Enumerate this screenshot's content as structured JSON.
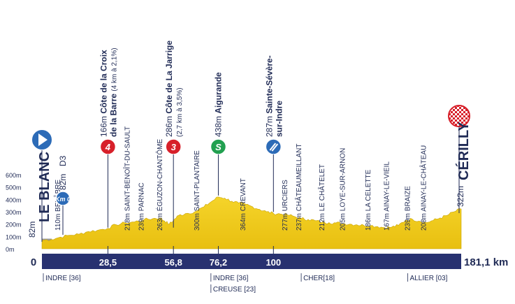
{
  "colors": {
    "terrain_fill": "#f2cf1c",
    "terrain_shade": "#c9a400",
    "distance_bar": "#283170",
    "sky_blue": "#2c6bb7",
    "climb_red": "#d7202a",
    "sprint_green": "#22a050",
    "text": "#1f2a55",
    "grey": "#999999"
  },
  "altitude_axis": {
    "labels": [
      "600m",
      "500m",
      "400m",
      "300m",
      "200m",
      "100m",
      "0m"
    ],
    "values": [
      600,
      500,
      400,
      300,
      200,
      100,
      0
    ]
  },
  "distance_axis": {
    "start_label": "0",
    "end_label": "181,1 km",
    "marks": [
      {
        "km": 28.5,
        "label": "28,5"
      },
      {
        "km": 56.8,
        "label": "56,8"
      },
      {
        "km": 76.2,
        "label": "76,2"
      },
      {
        "km": 100,
        "label": "100"
      }
    ],
    "total_km": 181.1
  },
  "start": {
    "name": "LE BLANC",
    "alt": "82m",
    "icon": "play-arrow-icon"
  },
  "finish": {
    "name": "CÉRILLY",
    "alt": "322m",
    "icon": "checkered-flag-icon"
  },
  "km0": {
    "label": "Km 0",
    "alt": "82m",
    "road": "D3"
  },
  "climbs": [
    {
      "badge": "4",
      "alt": "166m",
      "line1": "Côte de la Croix",
      "line2": "de la Barre",
      "detail": "(4 km à 2,1%)",
      "km": 28.5
    },
    {
      "badge": "3",
      "alt": "286m",
      "line1": "Côte de La Jarrige",
      "line2": "",
      "detail": "(2,7 km à 3,5%)",
      "km": 56.8
    }
  ],
  "sprint": {
    "badge": "S",
    "alt": "438m",
    "name": "Aigurande",
    "km": 76.2
  },
  "feed": {
    "alt": "287m",
    "line1": "Sainte-Sévère-",
    "line2": "sur-Indre",
    "icon": "feed-zone-icon",
    "km": 100
  },
  "waypoints": [
    {
      "text": "110m BELÂBRE",
      "km": 7
    },
    {
      "text": "218m SAINT-BENOÎT-DU-SAULT",
      "km": 37
    },
    {
      "text": "239m PARNAC",
      "km": 43
    },
    {
      "text": "263m ÉGUZON-CHANTÔME",
      "km": 51
    },
    {
      "text": "300m SAINT-PLANTAIRE",
      "km": 67
    },
    {
      "text": "364m CREVANT",
      "km": 87
    },
    {
      "text": "277m URCIERS",
      "km": 105
    },
    {
      "text": "237m CHÂTEAUMEILLANT",
      "km": 111
    },
    {
      "text": "212m LE CHÂTELET",
      "km": 121
    },
    {
      "text": "205m LOYE-SUR-ARNON",
      "km": 130
    },
    {
      "text": "186m LA CELETTE",
      "km": 141
    },
    {
      "text": "167m AINAY-LE-VIEIL",
      "km": 149
    },
    {
      "text": "239m BRAIZE",
      "km": 158
    },
    {
      "text": "208m AINAY-LE-CHÂTEAU",
      "km": 165
    }
  ],
  "departments": [
    {
      "text": "INDRE [36]",
      "km": 0
    },
    {
      "text": "INDRE [36]",
      "km": 73
    },
    {
      "text": "CREUSE [23]",
      "km": 73,
      "row": 2
    },
    {
      "text": "CHER[18]",
      "km": 112
    },
    {
      "text": "ALLIER [03]",
      "km": 158
    }
  ]
}
